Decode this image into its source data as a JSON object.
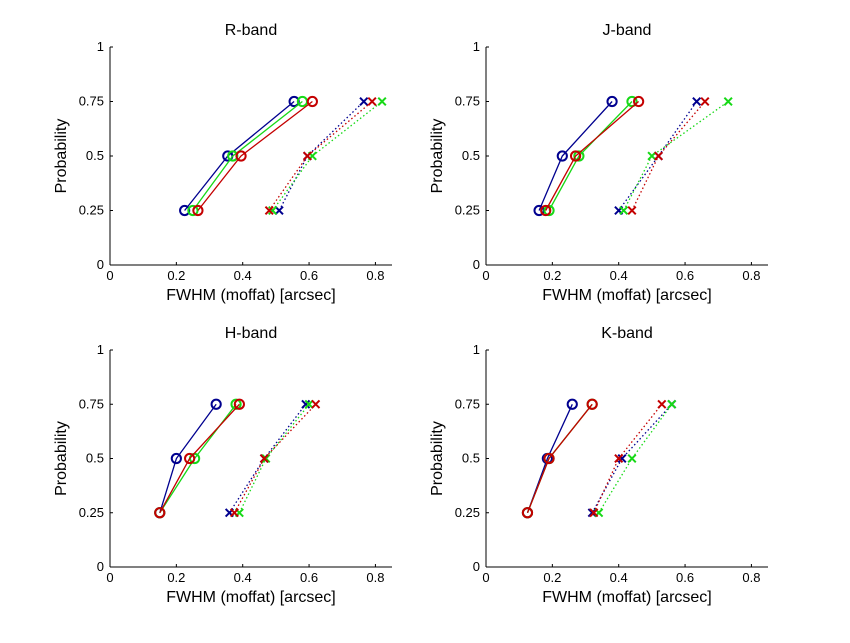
{
  "colors": {
    "blue": "#00008f",
    "green": "#16d916",
    "red": "#c40000",
    "axis": "#000000"
  },
  "chart_data": [
    {
      "type": "scatter",
      "title": "R-band",
      "xlabel": "FWHM (moffat) [arcsec]",
      "ylabel": "Probability",
      "xlim": [
        0,
        0.85
      ],
      "ylim": [
        0,
        1
      ],
      "xticks": [
        "0",
        "0.2",
        "0.4",
        "0.6",
        "0.8"
      ],
      "yticks": [
        "0",
        "0.25",
        "0.5",
        "0.75",
        "1"
      ],
      "grid": false,
      "series": [
        {
          "color": "blue",
          "marker": "circle",
          "line": "solid",
          "x": [
            0.225,
            0.355,
            0.555
          ],
          "y": [
            0.25,
            0.5,
            0.75
          ]
        },
        {
          "color": "green",
          "marker": "circle",
          "line": "solid",
          "x": [
            0.25,
            0.37,
            0.58
          ],
          "y": [
            0.25,
            0.5,
            0.75
          ]
        },
        {
          "color": "red",
          "marker": "circle",
          "line": "solid",
          "x": [
            0.265,
            0.395,
            0.61
          ],
          "y": [
            0.25,
            0.5,
            0.75
          ]
        },
        {
          "color": "blue",
          "marker": "cross",
          "line": "dotted",
          "x": [
            0.51,
            0.595,
            0.765
          ],
          "y": [
            0.25,
            0.5,
            0.75
          ]
        },
        {
          "color": "green",
          "marker": "cross",
          "line": "dotted",
          "x": [
            0.49,
            0.61,
            0.82
          ],
          "y": [
            0.25,
            0.5,
            0.75
          ]
        },
        {
          "color": "red",
          "marker": "cross",
          "line": "dotted",
          "x": [
            0.48,
            0.595,
            0.79
          ],
          "y": [
            0.25,
            0.5,
            0.75
          ]
        }
      ]
    },
    {
      "type": "scatter",
      "title": "J-band",
      "xlabel": "FWHM (moffat) [arcsec]",
      "ylabel": "Probability",
      "xlim": [
        0,
        0.85
      ],
      "ylim": [
        0,
        1
      ],
      "xticks": [
        "0",
        "0.2",
        "0.4",
        "0.6",
        "0.8"
      ],
      "yticks": [
        "0",
        "0.25",
        "0.5",
        "0.75",
        "1"
      ],
      "grid": false,
      "series": [
        {
          "color": "blue",
          "marker": "circle",
          "line": "solid",
          "x": [
            0.16,
            0.23,
            0.38
          ],
          "y": [
            0.25,
            0.5,
            0.75
          ]
        },
        {
          "color": "green",
          "marker": "circle",
          "line": "solid",
          "x": [
            0.19,
            0.28,
            0.44
          ],
          "y": [
            0.25,
            0.5,
            0.75
          ]
        },
        {
          "color": "red",
          "marker": "circle",
          "line": "solid",
          "x": [
            0.18,
            0.27,
            0.46
          ],
          "y": [
            0.25,
            0.5,
            0.75
          ]
        },
        {
          "color": "blue",
          "marker": "cross",
          "line": "dotted",
          "x": [
            0.4,
            0.52,
            0.635
          ],
          "y": [
            0.25,
            0.5,
            0.75
          ]
        },
        {
          "color": "green",
          "marker": "cross",
          "line": "dotted",
          "x": [
            0.415,
            0.5,
            0.73
          ],
          "y": [
            0.25,
            0.5,
            0.75
          ]
        },
        {
          "color": "red",
          "marker": "cross",
          "line": "dotted",
          "x": [
            0.44,
            0.52,
            0.66
          ],
          "y": [
            0.25,
            0.5,
            0.75
          ]
        }
      ]
    },
    {
      "type": "scatter",
      "title": "H-band",
      "xlabel": "FWHM (moffat) [arcsec]",
      "ylabel": "Probability",
      "xlim": [
        0,
        0.85
      ],
      "ylim": [
        0,
        1
      ],
      "xticks": [
        "0",
        "0.2",
        "0.4",
        "0.6",
        "0.8"
      ],
      "yticks": [
        "0",
        "0.25",
        "0.5",
        "0.75",
        "1"
      ],
      "grid": false,
      "series": [
        {
          "color": "blue",
          "marker": "circle",
          "line": "solid",
          "x": [
            0.15,
            0.2,
            0.32
          ],
          "y": [
            0.25,
            0.5,
            0.75
          ]
        },
        {
          "color": "green",
          "marker": "circle",
          "line": "solid",
          "x": [
            0.15,
            0.255,
            0.38
          ],
          "y": [
            0.25,
            0.5,
            0.75
          ]
        },
        {
          "color": "red",
          "marker": "circle",
          "line": "solid",
          "x": [
            0.15,
            0.24,
            0.39
          ],
          "y": [
            0.25,
            0.5,
            0.75
          ]
        },
        {
          "color": "blue",
          "marker": "cross",
          "line": "dotted",
          "x": [
            0.36,
            0.465,
            0.59
          ],
          "y": [
            0.25,
            0.5,
            0.75
          ]
        },
        {
          "color": "green",
          "marker": "cross",
          "line": "dotted",
          "x": [
            0.39,
            0.47,
            0.6
          ],
          "y": [
            0.25,
            0.5,
            0.75
          ]
        },
        {
          "color": "red",
          "marker": "cross",
          "line": "dotted",
          "x": [
            0.375,
            0.465,
            0.62
          ],
          "y": [
            0.25,
            0.5,
            0.75
          ]
        }
      ]
    },
    {
      "type": "scatter",
      "title": "K-band",
      "xlabel": "FWHM (moffat) [arcsec]",
      "ylabel": "Probability",
      "xlim": [
        0,
        0.85
      ],
      "ylim": [
        0,
        1
      ],
      "xticks": [
        "0",
        "0.2",
        "0.4",
        "0.6",
        "0.8"
      ],
      "yticks": [
        "0",
        "0.25",
        "0.5",
        "0.75",
        "1"
      ],
      "grid": false,
      "series": [
        {
          "color": "blue",
          "marker": "circle",
          "line": "solid",
          "x": [
            0.125,
            0.185,
            0.26
          ],
          "y": [
            0.25,
            0.5,
            0.75
          ]
        },
        {
          "color": "green",
          "marker": "circle",
          "line": "solid",
          "x": [
            0.125,
            0.19,
            0.32
          ],
          "y": [
            0.25,
            0.5,
            0.75
          ]
        },
        {
          "color": "red",
          "marker": "circle",
          "line": "solid",
          "x": [
            0.125,
            0.19,
            0.32
          ],
          "y": [
            0.25,
            0.5,
            0.75
          ]
        },
        {
          "color": "blue",
          "marker": "cross",
          "line": "dotted",
          "x": [
            0.32,
            0.41,
            0.56
          ],
          "y": [
            0.25,
            0.5,
            0.75
          ]
        },
        {
          "color": "green",
          "marker": "cross",
          "line": "dotted",
          "x": [
            0.34,
            0.44,
            0.56
          ],
          "y": [
            0.25,
            0.5,
            0.75
          ]
        },
        {
          "color": "red",
          "marker": "cross",
          "line": "dotted",
          "x": [
            0.325,
            0.4,
            0.53
          ],
          "y": [
            0.25,
            0.5,
            0.75
          ]
        }
      ]
    }
  ]
}
